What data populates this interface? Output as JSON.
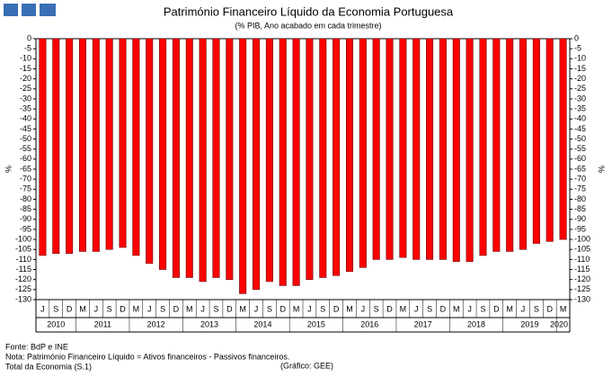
{
  "chart_data": {
    "type": "bar",
    "title": "Património Financeiro Líquido da Economia Portuguesa",
    "subtitle": "(% PIB, Ano acabado em cada trimestre)",
    "y_label": "%",
    "y2_label": "%",
    "categories": [
      "J",
      "S",
      "D",
      "M",
      "J",
      "S",
      "D",
      "M",
      "J",
      "S",
      "D",
      "M",
      "J",
      "S",
      "D",
      "M",
      "J",
      "S",
      "D",
      "M",
      "J",
      "S",
      "D",
      "M",
      "J",
      "S",
      "D",
      "M",
      "J",
      "S",
      "D",
      "M",
      "J",
      "S",
      "D",
      "M",
      "J",
      "S",
      "D",
      "M"
    ],
    "years": [
      "2010",
      null,
      null,
      "2011",
      null,
      null,
      null,
      "2012",
      null,
      null,
      null,
      "2013",
      null,
      null,
      null,
      "2014",
      null,
      null,
      null,
      "2015",
      null,
      null,
      null,
      "2016",
      null,
      null,
      null,
      "2017",
      null,
      null,
      null,
      "2018",
      null,
      null,
      null,
      "2019",
      null,
      null,
      null,
      "2020"
    ],
    "values": [
      -108,
      -107,
      -107,
      -106,
      -106,
      -105,
      -104,
      -108,
      -112,
      -115,
      -119,
      -119,
      -121,
      -119,
      -120,
      -127,
      -125,
      -121,
      -123,
      -123,
      -120,
      -119,
      -118,
      -116,
      -114,
      -110,
      -110,
      -109,
      -110,
      -110,
      -110,
      -111,
      -111,
      -108,
      -106,
      -106,
      -105,
      -102,
      -101,
      -100
    ],
    "color": "#ff0000",
    "ylim": [
      0,
      -130
    ],
    "yticks": [
      0,
      -5,
      -10,
      -15,
      -20,
      -25,
      -30,
      -35,
      -40,
      -45,
      -50,
      -55,
      -60,
      -65,
      -70,
      -75,
      -80,
      -85,
      -90,
      -95,
      -100,
      -105,
      -110,
      -115,
      -120,
      -125,
      -130
    ],
    "y2lim": [
      0,
      -130
    ],
    "y2ticks": [
      0,
      -5,
      -10,
      -15,
      -20,
      -25,
      -30,
      -35,
      -40,
      -45,
      -50,
      -55,
      -60,
      -65,
      -70,
      -75,
      -80,
      -85,
      -90,
      -95,
      -100,
      -105,
      -110,
      -115,
      -120,
      -125,
      -130
    ],
    "notes": [
      "Fonte: BdP e INE",
      "Nota: Património Financeiro Líquido = Ativos financeiros - Passivos financeiros.",
      "Total da Economia (S.1)"
    ],
    "credit": "(Gráfico: GEE)"
  }
}
